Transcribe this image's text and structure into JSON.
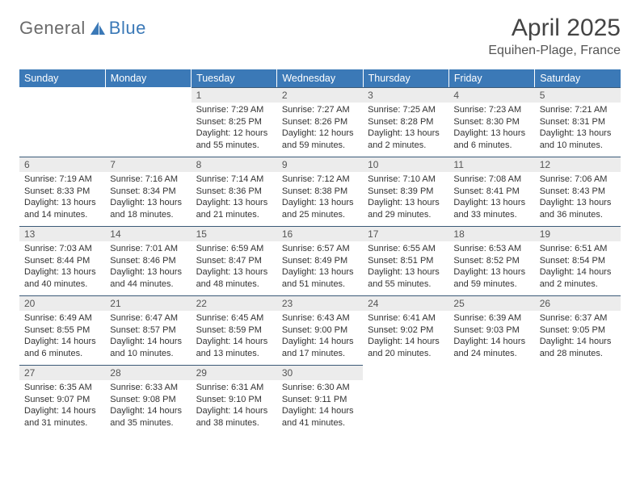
{
  "brand": {
    "part1": "General",
    "part2": "Blue"
  },
  "title": "April 2025",
  "location": "Equihen-Plage, France",
  "dayHeaders": [
    "Sunday",
    "Monday",
    "Tuesday",
    "Wednesday",
    "Thursday",
    "Friday",
    "Saturday"
  ],
  "colors": {
    "headerBg": "#3b79b7",
    "headerText": "#ffffff",
    "dayBarBg": "#ececec",
    "dayBarBorder": "#3b5a78",
    "textPrimary": "#333333",
    "logoBlue": "#3b79b7",
    "logoGray": "#6b6b6b"
  },
  "weeks": [
    [
      {
        "blank": true
      },
      {
        "blank": true
      },
      {
        "day": "1",
        "sunrise": "Sunrise: 7:29 AM",
        "sunset": "Sunset: 8:25 PM",
        "daylight": "Daylight: 12 hours and 55 minutes."
      },
      {
        "day": "2",
        "sunrise": "Sunrise: 7:27 AM",
        "sunset": "Sunset: 8:26 PM",
        "daylight": "Daylight: 12 hours and 59 minutes."
      },
      {
        "day": "3",
        "sunrise": "Sunrise: 7:25 AM",
        "sunset": "Sunset: 8:28 PM",
        "daylight": "Daylight: 13 hours and 2 minutes."
      },
      {
        "day": "4",
        "sunrise": "Sunrise: 7:23 AM",
        "sunset": "Sunset: 8:30 PM",
        "daylight": "Daylight: 13 hours and 6 minutes."
      },
      {
        "day": "5",
        "sunrise": "Sunrise: 7:21 AM",
        "sunset": "Sunset: 8:31 PM",
        "daylight": "Daylight: 13 hours and 10 minutes."
      }
    ],
    [
      {
        "day": "6",
        "sunrise": "Sunrise: 7:19 AM",
        "sunset": "Sunset: 8:33 PM",
        "daylight": "Daylight: 13 hours and 14 minutes."
      },
      {
        "day": "7",
        "sunrise": "Sunrise: 7:16 AM",
        "sunset": "Sunset: 8:34 PM",
        "daylight": "Daylight: 13 hours and 18 minutes."
      },
      {
        "day": "8",
        "sunrise": "Sunrise: 7:14 AM",
        "sunset": "Sunset: 8:36 PM",
        "daylight": "Daylight: 13 hours and 21 minutes."
      },
      {
        "day": "9",
        "sunrise": "Sunrise: 7:12 AM",
        "sunset": "Sunset: 8:38 PM",
        "daylight": "Daylight: 13 hours and 25 minutes."
      },
      {
        "day": "10",
        "sunrise": "Sunrise: 7:10 AM",
        "sunset": "Sunset: 8:39 PM",
        "daylight": "Daylight: 13 hours and 29 minutes."
      },
      {
        "day": "11",
        "sunrise": "Sunrise: 7:08 AM",
        "sunset": "Sunset: 8:41 PM",
        "daylight": "Daylight: 13 hours and 33 minutes."
      },
      {
        "day": "12",
        "sunrise": "Sunrise: 7:06 AM",
        "sunset": "Sunset: 8:43 PM",
        "daylight": "Daylight: 13 hours and 36 minutes."
      }
    ],
    [
      {
        "day": "13",
        "sunrise": "Sunrise: 7:03 AM",
        "sunset": "Sunset: 8:44 PM",
        "daylight": "Daylight: 13 hours and 40 minutes."
      },
      {
        "day": "14",
        "sunrise": "Sunrise: 7:01 AM",
        "sunset": "Sunset: 8:46 PM",
        "daylight": "Daylight: 13 hours and 44 minutes."
      },
      {
        "day": "15",
        "sunrise": "Sunrise: 6:59 AM",
        "sunset": "Sunset: 8:47 PM",
        "daylight": "Daylight: 13 hours and 48 minutes."
      },
      {
        "day": "16",
        "sunrise": "Sunrise: 6:57 AM",
        "sunset": "Sunset: 8:49 PM",
        "daylight": "Daylight: 13 hours and 51 minutes."
      },
      {
        "day": "17",
        "sunrise": "Sunrise: 6:55 AM",
        "sunset": "Sunset: 8:51 PM",
        "daylight": "Daylight: 13 hours and 55 minutes."
      },
      {
        "day": "18",
        "sunrise": "Sunrise: 6:53 AM",
        "sunset": "Sunset: 8:52 PM",
        "daylight": "Daylight: 13 hours and 59 minutes."
      },
      {
        "day": "19",
        "sunrise": "Sunrise: 6:51 AM",
        "sunset": "Sunset: 8:54 PM",
        "daylight": "Daylight: 14 hours and 2 minutes."
      }
    ],
    [
      {
        "day": "20",
        "sunrise": "Sunrise: 6:49 AM",
        "sunset": "Sunset: 8:55 PM",
        "daylight": "Daylight: 14 hours and 6 minutes."
      },
      {
        "day": "21",
        "sunrise": "Sunrise: 6:47 AM",
        "sunset": "Sunset: 8:57 PM",
        "daylight": "Daylight: 14 hours and 10 minutes."
      },
      {
        "day": "22",
        "sunrise": "Sunrise: 6:45 AM",
        "sunset": "Sunset: 8:59 PM",
        "daylight": "Daylight: 14 hours and 13 minutes."
      },
      {
        "day": "23",
        "sunrise": "Sunrise: 6:43 AM",
        "sunset": "Sunset: 9:00 PM",
        "daylight": "Daylight: 14 hours and 17 minutes."
      },
      {
        "day": "24",
        "sunrise": "Sunrise: 6:41 AM",
        "sunset": "Sunset: 9:02 PM",
        "daylight": "Daylight: 14 hours and 20 minutes."
      },
      {
        "day": "25",
        "sunrise": "Sunrise: 6:39 AM",
        "sunset": "Sunset: 9:03 PM",
        "daylight": "Daylight: 14 hours and 24 minutes."
      },
      {
        "day": "26",
        "sunrise": "Sunrise: 6:37 AM",
        "sunset": "Sunset: 9:05 PM",
        "daylight": "Daylight: 14 hours and 28 minutes."
      }
    ],
    [
      {
        "day": "27",
        "sunrise": "Sunrise: 6:35 AM",
        "sunset": "Sunset: 9:07 PM",
        "daylight": "Daylight: 14 hours and 31 minutes."
      },
      {
        "day": "28",
        "sunrise": "Sunrise: 6:33 AM",
        "sunset": "Sunset: 9:08 PM",
        "daylight": "Daylight: 14 hours and 35 minutes."
      },
      {
        "day": "29",
        "sunrise": "Sunrise: 6:31 AM",
        "sunset": "Sunset: 9:10 PM",
        "daylight": "Daylight: 14 hours and 38 minutes."
      },
      {
        "day": "30",
        "sunrise": "Sunrise: 6:30 AM",
        "sunset": "Sunset: 9:11 PM",
        "daylight": "Daylight: 14 hours and 41 minutes."
      },
      {
        "blank": true
      },
      {
        "blank": true
      },
      {
        "blank": true
      }
    ]
  ]
}
